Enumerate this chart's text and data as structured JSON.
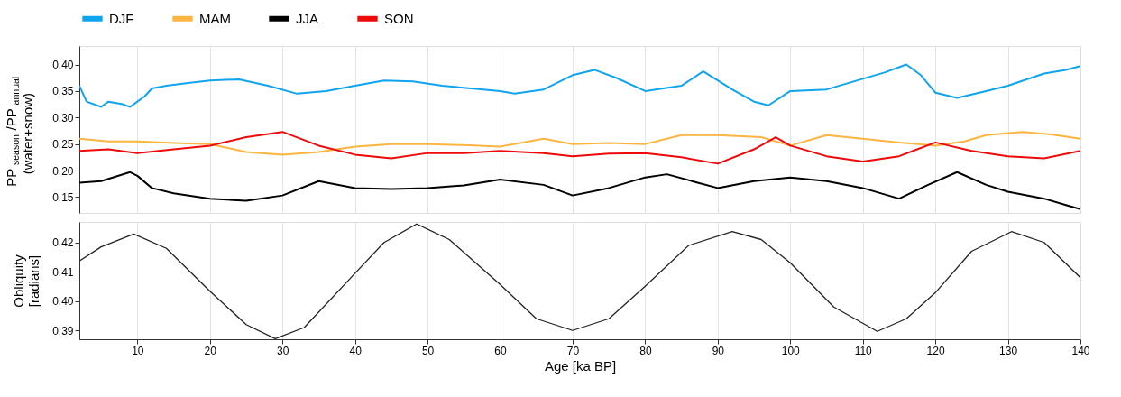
{
  "chart_data": [
    {
      "type": "line",
      "ylabel": "PP$_{season}$/PP$_{annual}$\n(water+snow)",
      "legend": "top",
      "grid": "x",
      "tick_labels": "y",
      "marker": "none",
      "line_style": "solid",
      "xlim": [
        2,
        140
      ],
      "xticks": [
        10,
        20,
        30,
        40,
        50,
        60,
        70,
        80,
        90,
        100,
        110,
        120,
        130,
        140
      ],
      "ylim": [
        0.12,
        0.435
      ],
      "yticks": [
        0.15,
        {
          "value": 0.2,
          "label": "0.20"
        },
        0.25,
        {
          "value": 0.3,
          "label": "0.30"
        },
        0.35,
        {
          "value": 0.4,
          "label": "0.40"
        }
      ],
      "series": [
        {
          "name": "DJF",
          "color": "#10a4ef",
          "x": [
            2,
            3,
            5,
            6,
            8,
            9,
            10,
            11,
            12,
            14,
            17,
            20,
            24,
            28,
            32,
            36,
            40,
            44,
            48,
            52,
            56,
            60,
            62,
            66,
            70,
            73,
            76,
            80,
            85,
            88,
            92,
            95,
            97,
            100,
            105,
            110,
            113,
            116,
            118,
            120,
            123,
            127,
            130,
            135,
            138,
            140
          ],
          "values": [
            0.36,
            0.33,
            0.32,
            0.33,
            0.325,
            0.32,
            0.33,
            0.34,
            0.355,
            0.36,
            0.365,
            0.37,
            0.372,
            0.36,
            0.345,
            0.35,
            0.36,
            0.37,
            0.368,
            0.36,
            0.355,
            0.35,
            0.345,
            0.353,
            0.38,
            0.39,
            0.375,
            0.35,
            0.36,
            0.387,
            0.353,
            0.33,
            0.323,
            0.35,
            0.353,
            0.373,
            0.385,
            0.4,
            0.38,
            0.347,
            0.337,
            0.35,
            0.36,
            0.383,
            0.39,
            0.397
          ]
        },
        {
          "name": "MAM",
          "color": "#fbb540",
          "x": [
            2,
            6,
            10,
            15,
            20,
            25,
            30,
            35,
            40,
            45,
            50,
            55,
            60,
            66,
            70,
            75,
            80,
            85,
            90,
            96,
            100,
            105,
            110,
            115,
            120,
            124,
            127,
            132,
            136,
            140
          ],
          "values": [
            0.26,
            0.255,
            0.255,
            0.252,
            0.25,
            0.235,
            0.23,
            0.235,
            0.245,
            0.25,
            0.25,
            0.248,
            0.245,
            0.26,
            0.25,
            0.252,
            0.25,
            0.267,
            0.267,
            0.263,
            0.247,
            0.267,
            0.26,
            0.253,
            0.247,
            0.255,
            0.267,
            0.273,
            0.268,
            0.26
          ]
        },
        {
          "name": "JJA",
          "color": "#000000",
          "x": [
            2,
            5,
            9,
            10,
            12,
            15,
            20,
            25,
            30,
            35,
            40,
            45,
            50,
            55,
            60,
            66,
            70,
            75,
            80,
            83,
            87,
            90,
            95,
            100,
            105,
            110,
            115,
            119,
            123,
            127,
            130,
            135,
            138,
            140
          ],
          "values": [
            0.177,
            0.18,
            0.197,
            0.19,
            0.167,
            0.157,
            0.147,
            0.143,
            0.153,
            0.18,
            0.167,
            0.165,
            0.167,
            0.172,
            0.183,
            0.173,
            0.153,
            0.167,
            0.187,
            0.193,
            0.178,
            0.167,
            0.18,
            0.187,
            0.18,
            0.167,
            0.147,
            0.173,
            0.197,
            0.173,
            0.16,
            0.147,
            0.135,
            0.127
          ]
        },
        {
          "name": "SON",
          "color": "#ee0a0a",
          "x": [
            2,
            6,
            10,
            15,
            20,
            25,
            30,
            35,
            40,
            45,
            50,
            55,
            60,
            66,
            70,
            75,
            80,
            85,
            90,
            95,
            98,
            100,
            105,
            110,
            115,
            120,
            125,
            130,
            135,
            140
          ],
          "values": [
            0.237,
            0.24,
            0.233,
            0.24,
            0.247,
            0.263,
            0.273,
            0.247,
            0.23,
            0.223,
            0.233,
            0.233,
            0.237,
            0.233,
            0.227,
            0.232,
            0.233,
            0.225,
            0.213,
            0.24,
            0.263,
            0.247,
            0.227,
            0.217,
            0.227,
            0.253,
            0.237,
            0.227,
            0.223,
            0.237
          ]
        }
      ]
    },
    {
      "type": "line",
      "xlabel": "Age [ka BP]",
      "ylabel": "Obliquity\n[radians]",
      "legend": false,
      "grid": "x",
      "marker": "none",
      "line_style": "solid",
      "xlim": [
        2,
        140
      ],
      "xticks": [
        10,
        20,
        30,
        40,
        50,
        60,
        70,
        80,
        90,
        100,
        110,
        120,
        130,
        140
      ],
      "ylim": [
        0.387,
        0.427
      ],
      "yticks": [
        0.39,
        {
          "value": 0.4,
          "label": "0.40"
        },
        0.41,
        0.42
      ],
      "series": [
        {
          "color": "#222222",
          "x": [
            2,
            5,
            9.5,
            14,
            20,
            25,
            29,
            33,
            40,
            44,
            48.5,
            53,
            60,
            65,
            70,
            75,
            80,
            86,
            92,
            96,
            100,
            106,
            112,
            116,
            120,
            125,
            130.5,
            135,
            140
          ],
          "values": [
            0.4137,
            0.4185,
            0.4229,
            0.418,
            0.4034,
            0.392,
            0.3872,
            0.391,
            0.4095,
            0.42,
            0.4263,
            0.421,
            0.4057,
            0.394,
            0.39,
            0.394,
            0.4051,
            0.419,
            0.4237,
            0.421,
            0.4131,
            0.398,
            0.3897,
            0.394,
            0.4029,
            0.417,
            0.4237,
            0.42,
            0.408
          ]
        }
      ]
    }
  ]
}
